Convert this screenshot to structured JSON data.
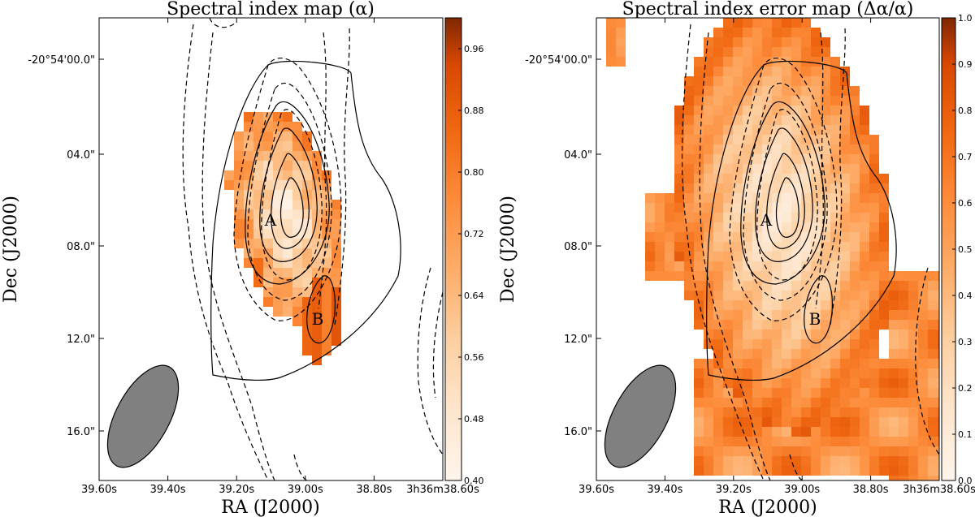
{
  "chart_data": [
    {
      "type": "heatmap",
      "title": "Spectral index map (α)",
      "xlabel": "RA (J2000)",
      "ylabel": "Dec (J2000)",
      "x_tick_labels": [
        "39.60s",
        "39.40s",
        "39.20s",
        "39.00s",
        "38.80s",
        "3h36m38.60s"
      ],
      "y_tick_labels": [
        "-20°54'00.0\"",
        "04.0\"",
        "08.0\"",
        "12.0\"",
        "16.0\""
      ],
      "colorbar": {
        "range": [
          0.4,
          1.0
        ],
        "tick_labels": [
          "0.40",
          "0.48",
          "0.56",
          "0.64",
          "0.72",
          "0.80",
          "0.88",
          "0.96"
        ],
        "colormap": "Oranges",
        "low_color": "#fff5eb",
        "high_color": "#7f2704"
      },
      "annotations": [
        "A",
        "B"
      ],
      "beam_color": "#808080"
    },
    {
      "type": "heatmap",
      "title": "Spectral index error map (Δα/α)",
      "xlabel": "RA (J2000)",
      "ylabel": "Dec (J2000)",
      "x_tick_labels": [
        "39.60s",
        "39.40s",
        "39.20s",
        "39.00s",
        "38.80s",
        "3h36m38.60s"
      ],
      "y_tick_labels": [
        "-20°54'00.0\"",
        "04.0\"",
        "08.0\"",
        "12.0\"",
        "16.0\""
      ],
      "colorbar": {
        "range": [
          0.0,
          1.0
        ],
        "tick_labels": [
          "0.0",
          "0.1",
          "0.2",
          "0.3",
          "0.4",
          "0.5",
          "0.6",
          "0.7",
          "0.8",
          "0.9",
          "1.0"
        ],
        "colormap": "Oranges",
        "low_color": "#fff5eb",
        "high_color": "#7f2704"
      },
      "annotations": [
        "A",
        "B"
      ],
      "beam_color": "#808080"
    }
  ]
}
